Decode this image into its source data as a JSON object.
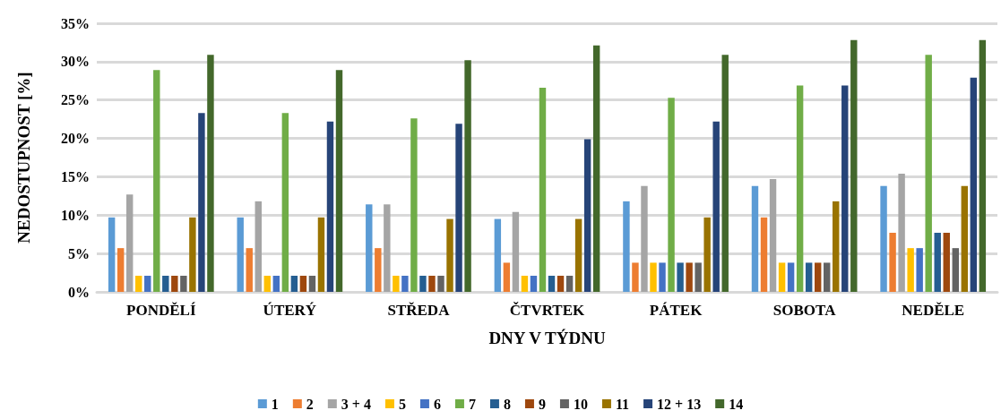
{
  "chart_data": {
    "type": "bar",
    "xlabel": "DNY V TÝDNU",
    "ylabel": "NEDOSTUPNOST [%]",
    "categories": [
      "PONDĚLÍ",
      "ÚTERÝ",
      "STŘEDA",
      "ČTVRTEK",
      "PÁTEK",
      "SOBOTA",
      "NEDĚLE"
    ],
    "series": [
      {
        "name": "1",
        "color": "#5b9bd5",
        "values": [
          9.7,
          9.7,
          11.4,
          9.5,
          11.8,
          13.8,
          13.8
        ]
      },
      {
        "name": "2",
        "color": "#ed7d31",
        "values": [
          5.7,
          5.7,
          5.7,
          3.8,
          3.8,
          9.7,
          7.7
        ]
      },
      {
        "name": "3 + 4",
        "color": "#a5a5a5",
        "values": [
          12.7,
          11.8,
          11.4,
          10.4,
          13.8,
          14.7,
          15.4
        ]
      },
      {
        "name": "5",
        "color": "#ffc000",
        "values": [
          2.1,
          2.1,
          2.1,
          2.1,
          3.8,
          3.8,
          5.7
        ]
      },
      {
        "name": "6",
        "color": "#4472c4",
        "values": [
          2.1,
          2.1,
          2.1,
          2.1,
          3.8,
          3.8,
          5.7
        ]
      },
      {
        "name": "7",
        "color": "#70ad47",
        "values": [
          28.9,
          23.3,
          22.6,
          26.6,
          25.3,
          26.9,
          30.9
        ]
      },
      {
        "name": "8",
        "color": "#255e91",
        "values": [
          2.1,
          2.1,
          2.1,
          2.1,
          3.8,
          3.8,
          7.7
        ]
      },
      {
        "name": "9",
        "color": "#9e480e",
        "values": [
          2.1,
          2.1,
          2.1,
          2.1,
          3.8,
          3.8,
          7.7
        ]
      },
      {
        "name": "10",
        "color": "#636363",
        "values": [
          2.1,
          2.1,
          2.1,
          2.1,
          3.8,
          3.8,
          5.7
        ]
      },
      {
        "name": "11",
        "color": "#997300",
        "values": [
          9.7,
          9.7,
          9.5,
          9.5,
          9.7,
          11.8,
          13.8
        ]
      },
      {
        "name": "12 + 13",
        "color": "#264478",
        "values": [
          23.3,
          22.2,
          21.9,
          19.9,
          22.2,
          26.9,
          27.9
        ]
      },
      {
        "name": "14",
        "color": "#43682b",
        "values": [
          30.9,
          28.9,
          30.2,
          32.1,
          30.9,
          32.8,
          32.8
        ]
      }
    ],
    "ylim": [
      0,
      35
    ],
    "yticks": [
      {
        "value": 0,
        "label": "0%"
      },
      {
        "value": 5,
        "label": "5%"
      },
      {
        "value": 10,
        "label": "10%"
      },
      {
        "value": 15,
        "label": "15%"
      },
      {
        "value": 20,
        "label": "20%"
      },
      {
        "value": 25,
        "label": "25%"
      },
      {
        "value": 30,
        "label": "30%"
      },
      {
        "value": 35,
        "label": "35%"
      }
    ],
    "grid": "y",
    "legend": "bottom"
  }
}
